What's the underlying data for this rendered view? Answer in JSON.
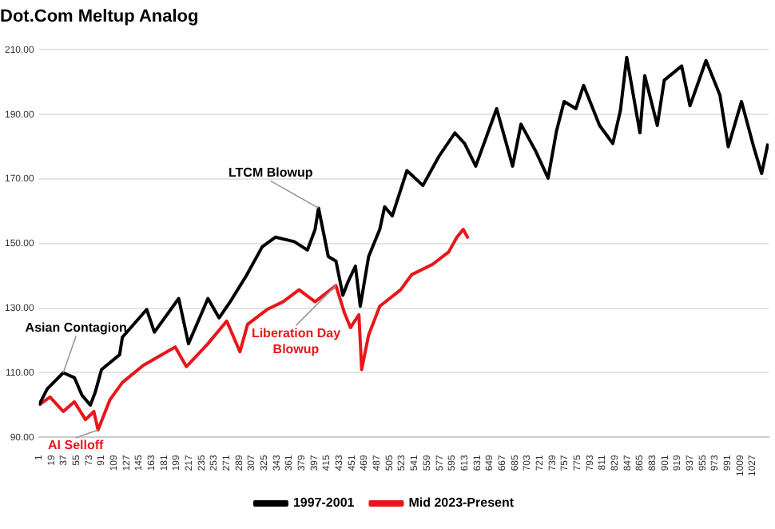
{
  "chart_data": {
    "type": "line",
    "title": "Dot.Com Meltup Analog",
    "xlim": [
      1,
      1050
    ],
    "xticks": [
      1,
      19,
      37,
      55,
      73,
      91,
      109,
      127,
      145,
      163,
      181,
      199,
      217,
      235,
      253,
      271,
      289,
      307,
      325,
      343,
      361,
      379,
      397,
      415,
      433,
      451,
      469,
      487,
      505,
      523,
      541,
      559,
      577,
      595,
      613,
      631,
      649,
      667,
      685,
      703,
      721,
      739,
      757,
      775,
      793,
      811,
      829,
      847,
      865,
      883,
      901,
      919,
      937,
      955,
      973,
      991,
      1009,
      1027
    ],
    "ylim": [
      90,
      210
    ],
    "yticks": [
      {
        "value": 90,
        "label": "90.00"
      },
      {
        "value": 110,
        "label": "110.00"
      },
      {
        "value": 130,
        "label": "130.00"
      },
      {
        "value": 150,
        "label": "150.00"
      },
      {
        "value": 170,
        "label": "170.00"
      },
      {
        "value": 190,
        "label": "190.00"
      },
      {
        "value": 210,
        "label": "210.00"
      }
    ],
    "grid": "y",
    "legend": "bottom",
    "marker": "none",
    "line_style": "solid",
    "series": [
      {
        "name": "1997-2001",
        "color": "#000000",
        "x": [
          1,
          13,
          36,
          52,
          63,
          75,
          82,
          91,
          117,
          121,
          156,
          167,
          202,
          216,
          244,
          260,
          276,
          299,
          322,
          341,
          368,
          387,
          398,
          403,
          417,
          428,
          438,
          445,
          456,
          463,
          475,
          491,
          498,
          509,
          530,
          553,
          576,
          599,
          613,
          629,
          659,
          682,
          694,
          715,
          733,
          745,
          756,
          773,
          784,
          807,
          826,
          837,
          846,
          865,
          872,
          890,
          900,
          925,
          937,
          960,
          980,
          992,
          1011,
          1029,
          1040,
          1049
        ],
        "values": [
          100,
          105,
          110,
          108.5,
          103,
          100,
          104,
          111,
          115.6,
          121,
          129.6,
          122.6,
          133,
          119,
          133,
          127,
          132,
          140,
          149,
          152,
          150.6,
          148,
          154.4,
          161,
          146,
          144.6,
          134,
          138,
          143,
          130.6,
          146,
          154.4,
          161.4,
          158.6,
          172.6,
          168,
          177,
          184.3,
          181,
          174,
          191.8,
          174,
          187,
          178.7,
          170.3,
          184.8,
          194,
          191.8,
          199,
          186.6,
          181,
          191.3,
          207.7,
          184.3,
          202,
          186.6,
          200.6,
          205,
          192.7,
          206.7,
          196,
          180,
          194,
          179.6,
          171.7,
          181
        ]
      },
      {
        "name": "Mid 2023-Present",
        "color": "#e8161b",
        "x": [
          1,
          17,
          36,
          52,
          68,
          80,
          86,
          103,
          121,
          151,
          197,
          213,
          244,
          271,
          290,
          301,
          329,
          352,
          375,
          398,
          428,
          440,
          449,
          461,
          465,
          475,
          491,
          521,
          537,
          567,
          590,
          602,
          611,
          618
        ],
        "values": [
          100,
          102.5,
          98,
          101,
          95.5,
          98,
          92.3,
          101.6,
          107,
          112.3,
          118,
          111.9,
          119,
          126,
          116.5,
          125,
          129.6,
          132,
          135.7,
          132,
          137,
          128.7,
          124,
          128,
          111,
          121.7,
          130.6,
          135.7,
          140.4,
          143.6,
          147.4,
          152,
          154.4,
          151.6
        ]
      }
    ],
    "annotations": [
      {
        "text": "Asian Contagion",
        "x": 36,
        "y": 110
      },
      {
        "text": "LTCM Blowup",
        "x": 403,
        "y": 161
      },
      {
        "text": "AI Selloff",
        "x": 86,
        "y": 92.3
      },
      {
        "text": "Liberation Day Blowup",
        "x": 428,
        "y": 137
      }
    ]
  }
}
